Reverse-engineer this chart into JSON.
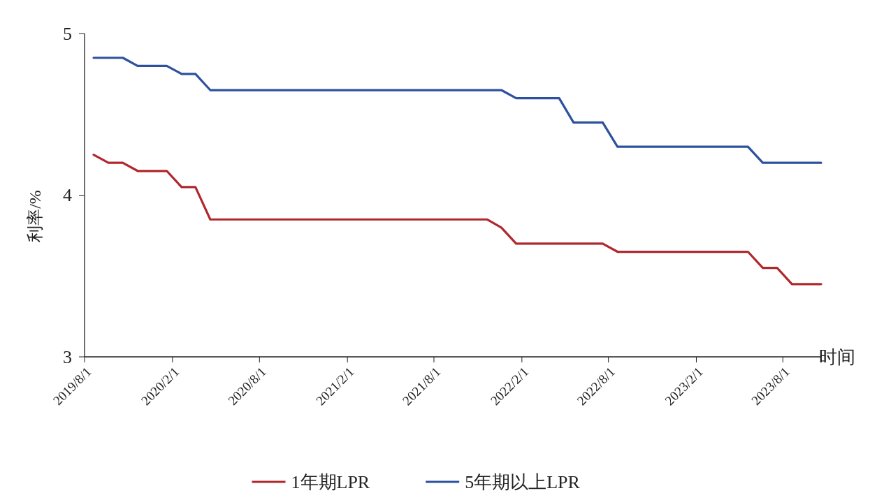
{
  "chart_data": {
    "type": "line",
    "xlabel": "时间",
    "ylabel": "利率/%",
    "x": [
      "2019-08-20",
      "2019-09-20",
      "2019-10-20",
      "2019-11-20",
      "2019-12-20",
      "2020-01-20",
      "2020-02-20",
      "2020-03-20",
      "2020-04-20",
      "2020-05-20",
      "2020-06-20",
      "2020-07-20",
      "2020-08-20",
      "2020-09-20",
      "2020-10-20",
      "2020-11-20",
      "2020-12-20",
      "2021-01-20",
      "2021-02-20",
      "2021-03-20",
      "2021-04-20",
      "2021-05-20",
      "2021-06-20",
      "2021-07-20",
      "2021-08-20",
      "2021-09-20",
      "2021-10-20",
      "2021-11-20",
      "2021-12-20",
      "2022-01-20",
      "2022-02-20",
      "2022-03-20",
      "2022-04-20",
      "2022-05-20",
      "2022-06-20",
      "2022-07-20",
      "2022-08-20",
      "2022-09-20",
      "2022-10-20",
      "2022-11-20",
      "2022-12-20",
      "2023-01-20",
      "2023-02-20",
      "2023-03-20",
      "2023-04-20",
      "2023-05-20",
      "2023-06-20",
      "2023-07-20",
      "2023-08-20",
      "2023-09-20",
      "2023-10-20"
    ],
    "series": [
      {
        "name": "1年期LPR",
        "color": "#b0282e",
        "values": [
          4.25,
          4.2,
          4.2,
          4.15,
          4.15,
          4.15,
          4.05,
          4.05,
          3.85,
          3.85,
          3.85,
          3.85,
          3.85,
          3.85,
          3.85,
          3.85,
          3.85,
          3.85,
          3.85,
          3.85,
          3.85,
          3.85,
          3.85,
          3.85,
          3.85,
          3.85,
          3.85,
          3.85,
          3.8,
          3.7,
          3.7,
          3.7,
          3.7,
          3.7,
          3.7,
          3.7,
          3.65,
          3.65,
          3.65,
          3.65,
          3.65,
          3.65,
          3.65,
          3.65,
          3.65,
          3.65,
          3.55,
          3.55,
          3.45,
          3.45,
          3.45
        ]
      },
      {
        "name": "5年期以上LPR",
        "color": "#2d519d",
        "values": [
          4.85,
          4.85,
          4.85,
          4.8,
          4.8,
          4.8,
          4.75,
          4.75,
          4.65,
          4.65,
          4.65,
          4.65,
          4.65,
          4.65,
          4.65,
          4.65,
          4.65,
          4.65,
          4.65,
          4.65,
          4.65,
          4.65,
          4.65,
          4.65,
          4.65,
          4.65,
          4.65,
          4.65,
          4.65,
          4.6,
          4.6,
          4.6,
          4.6,
          4.45,
          4.45,
          4.45,
          4.3,
          4.3,
          4.3,
          4.3,
          4.3,
          4.3,
          4.3,
          4.3,
          4.3,
          4.3,
          4.2,
          4.2,
          4.2,
          4.2,
          4.2
        ]
      }
    ],
    "xlim": [
      "2019-08-01",
      "2023-10-20"
    ],
    "xticks": [
      {
        "value": "2019-08-01",
        "label": "2019/8/1"
      },
      {
        "value": "2020-02-01",
        "label": "2020/2/1"
      },
      {
        "value": "2020-08-01",
        "label": "2020/8/1"
      },
      {
        "value": "2021-02-01",
        "label": "2021/2/1"
      },
      {
        "value": "2021-08-01",
        "label": "2021/8/1"
      },
      {
        "value": "2022-02-01",
        "label": "2022/2/1"
      },
      {
        "value": "2022-08-01",
        "label": "2022/8/1"
      },
      {
        "value": "2023-02-01",
        "label": "2023/2/1"
      },
      {
        "value": "2023-08-01",
        "label": "2023/8/1"
      }
    ],
    "ylim": [
      3,
      5
    ],
    "yticks": [
      3,
      4,
      5
    ],
    "legend": "bottom",
    "marker": "none"
  }
}
